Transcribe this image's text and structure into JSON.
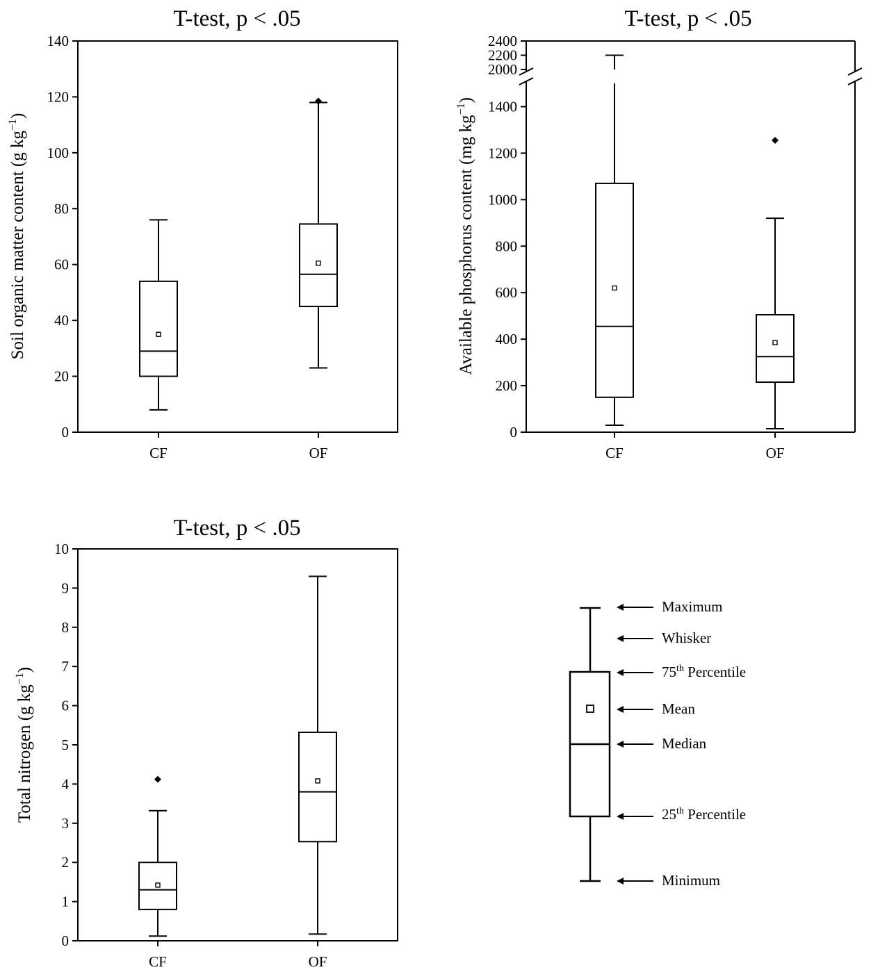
{
  "chart_data": [
    {
      "type": "box",
      "title": "T-test, p < .05",
      "ylabel": "Soil organic matter content (g kg",
      "ylabel_sup": "−1",
      "ylabel_end": ")",
      "ylim": [
        0,
        140
      ],
      "yticks": [
        0,
        20,
        40,
        60,
        80,
        100,
        120,
        140
      ],
      "categories": [
        "CF",
        "OF"
      ],
      "boxes": [
        {
          "name": "CF",
          "min": 8,
          "q1": 20,
          "median": 29,
          "q3": 54,
          "max": 76,
          "mean": 35,
          "outliers": []
        },
        {
          "name": "OF",
          "min": 23,
          "q1": 45,
          "median": 56.5,
          "q3": 74.5,
          "max": 118,
          "mean": 60.5,
          "outliers": [
            118.5
          ]
        }
      ]
    },
    {
      "type": "box",
      "title": "T-test, p < .05",
      "ylabel": "Available phosphorus content (mg kg",
      "ylabel_sup": "−1",
      "ylabel_end": ")",
      "ylim": [
        0,
        2400
      ],
      "axis_break": [
        1500,
        2000
      ],
      "yticks": [
        0,
        200,
        400,
        600,
        800,
        1000,
        1200,
        1400,
        2000,
        2200,
        2400
      ],
      "categories": [
        "CF",
        "OF"
      ],
      "boxes": [
        {
          "name": "CF",
          "min": 30,
          "q1": 150,
          "median": 455,
          "q3": 1070,
          "max": 2200,
          "mean": 620,
          "outliers": []
        },
        {
          "name": "OF",
          "min": 15,
          "q1": 215,
          "median": 325,
          "q3": 505,
          "max": 920,
          "mean": 385,
          "outliers": [
            1255
          ]
        }
      ]
    },
    {
      "type": "box",
      "title": "T-test, p < .05",
      "ylabel": "Total nitrogen (g kg",
      "ylabel_sup": "−1",
      "ylabel_end": ")",
      "ylim": [
        0,
        10
      ],
      "yticks": [
        0,
        1,
        2,
        3,
        4,
        5,
        6,
        7,
        8,
        9,
        10
      ],
      "categories": [
        "CF",
        "OF"
      ],
      "boxes": [
        {
          "name": "CF",
          "min": 0.12,
          "q1": 0.8,
          "median": 1.3,
          "q3": 2.0,
          "max": 3.32,
          "mean": 1.42,
          "outliers": [
            4.12
          ]
        },
        {
          "name": "OF",
          "min": 0.17,
          "q1": 2.53,
          "median": 3.8,
          "q3": 5.32,
          "max": 9.3,
          "mean": 4.08,
          "outliers": []
        }
      ]
    }
  ],
  "legend": {
    "maximum": "Maximum",
    "whisker": "Whisker",
    "p75": "75",
    "p75_sup": "th",
    "p75_rest": " Percentile",
    "mean": "Mean",
    "median": "Median",
    "p25": "25",
    "p25_sup": "th",
    "p25_rest": " Percentile",
    "minimum": "Minimum"
  }
}
